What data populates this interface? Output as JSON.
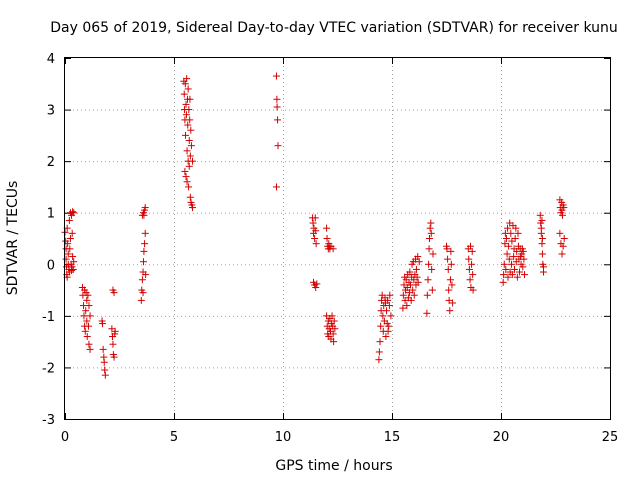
{
  "chart_data": {
    "type": "scatter",
    "title": "Day 065 of 2019, Sidereal Day-to-day VTEC variation (SDTVAR) for receiver kunu",
    "xlabel": "GPS time / hours",
    "ylabel": "SDTVAR / TECUs",
    "xlim": [
      0,
      25
    ],
    "ylim": [
      -3,
      4
    ],
    "xticks": [
      0,
      5,
      10,
      15,
      20,
      25
    ],
    "yticks": [
      -3,
      -2,
      -1,
      0,
      1,
      2,
      3,
      4
    ],
    "grid": true,
    "marker": "+",
    "marker_color": "#d40000",
    "series": [
      {
        "name": "SDTVAR",
        "points": [
          [
            0.0,
            0.62
          ],
          [
            0.03,
            0.45
          ],
          [
            0.05,
            0.3
          ],
          [
            0.05,
            0.1
          ],
          [
            0.07,
            -0.05
          ],
          [
            0.08,
            -0.2
          ],
          [
            0.1,
            -0.25
          ],
          [
            0.1,
            0.7
          ],
          [
            0.12,
            0.4
          ],
          [
            0.15,
            0.2
          ],
          [
            0.15,
            0.0
          ],
          [
            0.18,
            -0.1
          ],
          [
            0.2,
            0.85
          ],
          [
            0.2,
            -0.15
          ],
          [
            0.22,
            0.3
          ],
          [
            0.25,
            1.0
          ],
          [
            0.25,
            0.5
          ],
          [
            0.28,
            0.0
          ],
          [
            0.3,
            -0.12
          ],
          [
            0.3,
            0.95
          ],
          [
            0.32,
            -0.05
          ],
          [
            0.33,
            0.6
          ],
          [
            0.35,
            0.15
          ],
          [
            0.35,
            1.02
          ],
          [
            0.38,
            -0.1
          ],
          [
            0.4,
            0.05
          ],
          [
            0.4,
            1.0
          ],
          [
            0.8,
            -0.45
          ],
          [
            0.82,
            -0.6
          ],
          [
            0.85,
            -0.8
          ],
          [
            0.87,
            -1.0
          ],
          [
            0.9,
            -1.2
          ],
          [
            0.9,
            -0.5
          ],
          [
            0.93,
            -1.3
          ],
          [
            0.95,
            -0.9
          ],
          [
            0.97,
            -0.55
          ],
          [
            1.0,
            -1.1
          ],
          [
            1.0,
            -0.7
          ],
          [
            1.02,
            -1.4
          ],
          [
            1.05,
            -0.6
          ],
          [
            1.08,
            -1.2
          ],
          [
            1.1,
            -1.55
          ],
          [
            1.1,
            -0.8
          ],
          [
            1.15,
            -1.65
          ],
          [
            1.15,
            -1.0
          ],
          [
            1.7,
            -1.1
          ],
          [
            1.72,
            -1.15
          ],
          [
            1.75,
            -1.65
          ],
          [
            1.78,
            -1.8
          ],
          [
            1.8,
            -1.9
          ],
          [
            1.82,
            -2.05
          ],
          [
            1.85,
            -2.15
          ],
          [
            2.15,
            -1.25
          ],
          [
            2.18,
            -1.4
          ],
          [
            2.2,
            -1.55
          ],
          [
            2.22,
            -1.75
          ],
          [
            2.25,
            -1.8
          ],
          [
            2.28,
            -1.35
          ],
          [
            2.3,
            -1.3
          ],
          [
            2.2,
            -0.5
          ],
          [
            2.25,
            -0.55
          ],
          [
            3.5,
            -0.7
          ],
          [
            3.52,
            -0.5
          ],
          [
            3.55,
            -0.3
          ],
          [
            3.58,
            -0.15
          ],
          [
            3.6,
            0.05
          ],
          [
            3.62,
            0.25
          ],
          [
            3.65,
            0.4
          ],
          [
            3.68,
            0.6
          ],
          [
            3.55,
            0.95
          ],
          [
            3.6,
            1.0
          ],
          [
            3.62,
            0.95
          ],
          [
            3.65,
            1.05
          ],
          [
            3.68,
            1.1
          ],
          [
            3.58,
            -0.55
          ],
          [
            3.7,
            -0.2
          ],
          [
            5.45,
            3.55
          ],
          [
            5.47,
            3.3
          ],
          [
            5.48,
            3.0
          ],
          [
            5.5,
            2.8
          ],
          [
            5.5,
            1.8
          ],
          [
            5.52,
            3.5
          ],
          [
            5.53,
            2.5
          ],
          [
            5.55,
            3.1
          ],
          [
            5.55,
            1.7
          ],
          [
            5.57,
            2.9
          ],
          [
            5.58,
            3.6
          ],
          [
            5.6,
            2.2
          ],
          [
            5.6,
            1.6
          ],
          [
            5.62,
            3.2
          ],
          [
            5.63,
            2.7
          ],
          [
            5.65,
            3.4
          ],
          [
            5.65,
            2.0
          ],
          [
            5.67,
            1.5
          ],
          [
            5.68,
            3.0
          ],
          [
            5.7,
            2.4
          ],
          [
            5.7,
            1.9
          ],
          [
            5.72,
            2.8
          ],
          [
            5.73,
            3.2
          ],
          [
            5.75,
            2.1
          ],
          [
            5.75,
            1.3
          ],
          [
            5.77,
            2.6
          ],
          [
            5.78,
            1.2
          ],
          [
            5.8,
            2.3
          ],
          [
            5.82,
            1.15
          ],
          [
            5.85,
            2.0
          ],
          [
            5.85,
            1.1
          ],
          [
            9.7,
            3.65
          ],
          [
            9.72,
            3.2
          ],
          [
            9.73,
            3.05
          ],
          [
            9.75,
            2.8
          ],
          [
            9.77,
            2.3
          ],
          [
            9.7,
            1.5
          ],
          [
            11.35,
            0.9
          ],
          [
            11.38,
            0.8
          ],
          [
            11.4,
            0.6
          ],
          [
            11.42,
            0.7
          ],
          [
            11.45,
            0.5
          ],
          [
            11.48,
            0.9
          ],
          [
            11.5,
            0.65
          ],
          [
            11.52,
            0.4
          ],
          [
            11.4,
            -0.35
          ],
          [
            11.45,
            -0.4
          ],
          [
            11.5,
            -0.45
          ],
          [
            11.55,
            -0.38
          ],
          [
            12.0,
            0.7
          ],
          [
            12.02,
            0.5
          ],
          [
            12.05,
            0.35
          ],
          [
            12.08,
            0.3
          ],
          [
            12.1,
            0.4
          ],
          [
            12.12,
            0.35
          ],
          [
            12.15,
            0.3
          ],
          [
            12.0,
            -1.0
          ],
          [
            12.03,
            -1.2
          ],
          [
            12.05,
            -1.35
          ],
          [
            12.08,
            -1.1
          ],
          [
            12.1,
            -1.4
          ],
          [
            12.12,
            -1.25
          ],
          [
            12.15,
            -1.05
          ],
          [
            12.18,
            -1.3
          ],
          [
            12.2,
            -1.45
          ],
          [
            12.22,
            -1.15
          ],
          [
            12.25,
            -1.0
          ],
          [
            12.28,
            -1.2
          ],
          [
            12.3,
            -1.35
          ],
          [
            12.32,
            -1.5
          ],
          [
            12.35,
            -1.1
          ],
          [
            12.38,
            -1.25
          ],
          [
            12.2,
            0.35
          ],
          [
            12.3,
            0.3
          ],
          [
            14.4,
            -1.85
          ],
          [
            14.42,
            -1.7
          ],
          [
            14.45,
            -1.5
          ],
          [
            14.48,
            -1.2
          ],
          [
            14.5,
            -0.9
          ],
          [
            14.52,
            -0.7
          ],
          [
            14.55,
            -0.6
          ],
          [
            14.58,
            -1.0
          ],
          [
            14.6,
            -1.3
          ],
          [
            14.62,
            -0.8
          ],
          [
            14.65,
            -1.1
          ],
          [
            14.68,
            -0.65
          ],
          [
            14.7,
            -0.75
          ],
          [
            14.72,
            -1.4
          ],
          [
            14.75,
            -0.9
          ],
          [
            14.78,
            -1.15
          ],
          [
            14.8,
            -0.7
          ],
          [
            14.82,
            -1.3
          ],
          [
            14.85,
            -1.2
          ],
          [
            14.88,
            -0.8
          ],
          [
            14.9,
            -0.6
          ],
          [
            14.95,
            -1.0
          ],
          [
            15.5,
            -0.85
          ],
          [
            15.52,
            -0.6
          ],
          [
            15.55,
            -0.4
          ],
          [
            15.58,
            -0.25
          ],
          [
            15.6,
            -0.7
          ],
          [
            15.62,
            -0.5
          ],
          [
            15.65,
            -0.3
          ],
          [
            15.68,
            -0.8
          ],
          [
            15.7,
            -0.45
          ],
          [
            15.72,
            -0.2
          ],
          [
            15.75,
            -0.65
          ],
          [
            15.78,
            -0.35
          ],
          [
            15.8,
            -0.55
          ],
          [
            15.82,
            -0.15
          ],
          [
            15.85,
            -0.4
          ],
          [
            15.88,
            -0.7
          ],
          [
            15.9,
            -0.25
          ],
          [
            15.92,
            0.0
          ],
          [
            15.95,
            -0.5
          ],
          [
            15.98,
            0.05
          ],
          [
            16.0,
            -0.3
          ],
          [
            16.02,
            -0.6
          ],
          [
            16.05,
            -0.2
          ],
          [
            16.08,
            0.1
          ],
          [
            16.1,
            -0.4
          ],
          [
            16.12,
            -0.1
          ],
          [
            16.15,
            -0.25
          ],
          [
            16.18,
            0.15
          ],
          [
            16.2,
            -0.35
          ],
          [
            16.25,
            0.05
          ],
          [
            16.6,
            -0.95
          ],
          [
            16.62,
            -0.6
          ],
          [
            16.65,
            -0.3
          ],
          [
            16.68,
            0.0
          ],
          [
            16.7,
            0.3
          ],
          [
            16.72,
            0.5
          ],
          [
            16.75,
            0.7
          ],
          [
            16.78,
            0.8
          ],
          [
            16.8,
            0.6
          ],
          [
            16.82,
            -0.1
          ],
          [
            16.85,
            -0.5
          ],
          [
            16.88,
            0.2
          ],
          [
            17.5,
            0.35
          ],
          [
            17.52,
            0.3
          ],
          [
            17.55,
            0.1
          ],
          [
            17.58,
            -0.1
          ],
          [
            17.6,
            -0.5
          ],
          [
            17.62,
            -0.7
          ],
          [
            17.65,
            -0.9
          ],
          [
            17.68,
            -0.3
          ],
          [
            17.7,
            0.25
          ],
          [
            17.72,
            0.0
          ],
          [
            17.75,
            -0.4
          ],
          [
            17.78,
            -0.75
          ],
          [
            18.5,
            0.3
          ],
          [
            18.52,
            0.1
          ],
          [
            18.55,
            -0.1
          ],
          [
            18.58,
            -0.3
          ],
          [
            18.6,
            0.35
          ],
          [
            18.62,
            -0.45
          ],
          [
            18.65,
            0.0
          ],
          [
            18.68,
            0.25
          ],
          [
            18.7,
            -0.2
          ],
          [
            18.72,
            -0.5
          ],
          [
            20.1,
            -0.35
          ],
          [
            20.12,
            -0.2
          ],
          [
            20.15,
            0.0
          ],
          [
            20.18,
            0.4
          ],
          [
            20.2,
            0.6
          ],
          [
            20.22,
            -0.1
          ],
          [
            20.25,
            0.5
          ],
          [
            20.28,
            0.2
          ],
          [
            20.3,
            0.7
          ],
          [
            20.32,
            -0.25
          ],
          [
            20.35,
            0.35
          ],
          [
            20.38,
            0.1
          ],
          [
            20.4,
            0.8
          ],
          [
            20.42,
            -0.15
          ],
          [
            20.45,
            0.6
          ],
          [
            20.48,
            0.0
          ],
          [
            20.5,
            0.45
          ],
          [
            20.52,
            -0.2
          ],
          [
            20.55,
            0.75
          ],
          [
            20.58,
            0.15
          ],
          [
            20.6,
            0.3
          ],
          [
            20.62,
            -0.1
          ],
          [
            20.65,
            0.5
          ],
          [
            20.68,
            0.7
          ],
          [
            20.7,
            0.05
          ],
          [
            20.72,
            0.25
          ],
          [
            20.75,
            -0.25
          ],
          [
            20.78,
            0.6
          ],
          [
            20.8,
            0.35
          ],
          [
            20.82,
            0.1
          ],
          [
            20.85,
            -0.15
          ],
          [
            20.88,
            0.3
          ],
          [
            20.9,
            0.15
          ],
          [
            20.92,
            0.0
          ],
          [
            20.95,
            0.2
          ],
          [
            20.98,
            0.3
          ],
          [
            21.0,
            -0.05
          ],
          [
            21.02,
            0.25
          ],
          [
            21.05,
            0.1
          ],
          [
            21.08,
            -0.2
          ],
          [
            21.8,
            0.95
          ],
          [
            21.82,
            0.8
          ],
          [
            21.85,
            0.6
          ],
          [
            21.88,
            0.4
          ],
          [
            21.9,
            0.2
          ],
          [
            21.92,
            0.0
          ],
          [
            21.95,
            -0.15
          ],
          [
            21.85,
            0.7
          ],
          [
            21.9,
            0.5
          ],
          [
            21.95,
            -0.05
          ],
          [
            21.88,
            0.85
          ],
          [
            22.7,
            1.25
          ],
          [
            22.72,
            1.1
          ],
          [
            22.75,
            1.0
          ],
          [
            22.78,
            1.2
          ],
          [
            22.8,
            1.05
          ],
          [
            22.82,
            0.95
          ],
          [
            22.85,
            1.15
          ],
          [
            22.88,
            1.1
          ],
          [
            22.7,
            0.6
          ],
          [
            22.75,
            0.4
          ],
          [
            22.8,
            0.2
          ],
          [
            22.85,
            0.35
          ],
          [
            22.9,
            0.5
          ]
        ]
      }
    ]
  }
}
